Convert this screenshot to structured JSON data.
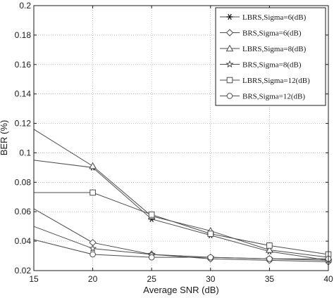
{
  "chart_data": {
    "type": "line",
    "xlabel": "Average SNR (dB)",
    "ylabel": "BER (%)",
    "xlim": [
      15,
      40
    ],
    "ylim": [
      0.02,
      0.2
    ],
    "xticks": [
      15,
      20,
      25,
      30,
      35,
      40
    ],
    "yticks": [
      0.02,
      0.04,
      0.06,
      0.08,
      0.1,
      0.12,
      0.14,
      0.16,
      0.18,
      0.2
    ],
    "ytick_labels": [
      "0.02",
      "0.04",
      "0.06",
      "0.08",
      "0.1",
      "0.12",
      "0.14",
      "0.16",
      "0.18",
      "0.2"
    ],
    "grid": true,
    "legend_position": "top-right",
    "line_color": "#4d4d4d",
    "series": [
      {
        "name": "LBRS,Sigma=6(dB)",
        "marker": "asterisk",
        "x": [
          15,
          20,
          25,
          30,
          35,
          40
        ],
        "values": [
          0.095,
          0.09,
          0.055,
          0.044,
          0.033,
          0.027
        ]
      },
      {
        "name": "BRS,Sigma=6(dB)",
        "marker": "diamond",
        "x": [
          15,
          20,
          25,
          30,
          35,
          40
        ],
        "values": [
          0.062,
          0.039,
          0.031,
          0.028,
          0.027,
          0.026
        ]
      },
      {
        "name": "LBRS,Sigma=8(dB)",
        "marker": "triangle",
        "x": [
          15,
          20,
          25,
          30,
          35,
          40
        ],
        "values": [
          0.116,
          0.091,
          0.057,
          0.047,
          0.034,
          0.029
        ]
      },
      {
        "name": "BRS,Sigma=8(dB)",
        "marker": "star",
        "x": [
          15,
          20,
          25,
          30,
          35,
          40
        ],
        "values": [
          0.05,
          0.035,
          0.031,
          0.029,
          0.028,
          0.027
        ]
      },
      {
        "name": "LBRS,Sigma=12(dB)",
        "marker": "square",
        "x": [
          15,
          20,
          25,
          30,
          35,
          40
        ],
        "values": [
          0.073,
          0.073,
          0.058,
          0.045,
          0.037,
          0.031
        ]
      },
      {
        "name": "BRS,Sigma=12(dB)",
        "marker": "circle",
        "x": [
          15,
          20,
          25,
          30,
          35,
          40
        ],
        "values": [
          0.041,
          0.031,
          0.029,
          0.029,
          0.028,
          0.028
        ]
      }
    ]
  }
}
